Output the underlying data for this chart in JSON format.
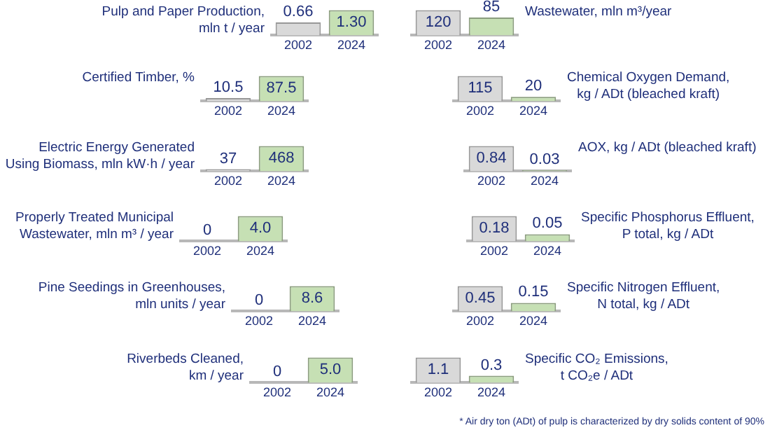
{
  "chart_data": [
    {
      "type": "bar",
      "title": "Pulp and Paper Production,\nmln t / year",
      "categories": [
        "2002",
        "2024"
      ],
      "values": [
        0.66,
        1.3
      ],
      "colors": [
        "#d9d9d9",
        "#c6e0b4"
      ],
      "value_labels": [
        "0.66",
        "1.30"
      ],
      "tick_labels": "x",
      "grid": false,
      "legend": false
    },
    {
      "type": "bar",
      "title": "Wastewater, mln m³/year",
      "categories": [
        "2002",
        "2024"
      ],
      "values": [
        120,
        85
      ],
      "colors": [
        "#d9d9d9",
        "#c6e0b4"
      ],
      "data_labels": true,
      "tick_labels": "x",
      "grid": false,
      "legend": false
    },
    {
      "type": "bar",
      "title": "Certified Timber, %",
      "categories": [
        "2002",
        "2024"
      ],
      "values": [
        10.5,
        87.5
      ],
      "colors": [
        "#d9d9d9",
        "#c6e0b4"
      ],
      "data_labels": true,
      "tick_labels": "x",
      "grid": false,
      "legend": false
    },
    {
      "type": "bar",
      "title": "Chemical Oxygen Demand,\nkg / ADt (bleached kraft)",
      "categories": [
        "2002",
        "2024"
      ],
      "values": [
        115,
        20
      ],
      "colors": [
        "#d9d9d9",
        "#c6e0b4"
      ],
      "data_labels": true,
      "tick_labels": "x",
      "grid": false,
      "legend": false
    },
    {
      "type": "bar",
      "title": "Electric Energy Generated\nUsing Biomass, mln kW·h / year",
      "categories": [
        "2002",
        "2024"
      ],
      "values": [
        37,
        468
      ],
      "colors": [
        "#d9d9d9",
        "#c6e0b4"
      ],
      "data_labels": true,
      "tick_labels": "x",
      "grid": false,
      "legend": false
    },
    {
      "type": "bar",
      "title": "AOX, kg / ADt (bleached kraft)",
      "categories": [
        "2002",
        "2024"
      ],
      "values": [
        0.84,
        0.03
      ],
      "colors": [
        "#d9d9d9",
        "#c6e0b4"
      ],
      "data_labels": true,
      "tick_labels": "x",
      "grid": false,
      "legend": false
    },
    {
      "type": "bar",
      "title": "Properly Treated Municipal\nWastewater, mln m³ / year",
      "categories": [
        "2002",
        "2024"
      ],
      "values": [
        0,
        4.0
      ],
      "colors": [
        "#d9d9d9",
        "#c6e0b4"
      ],
      "value_labels": [
        "0",
        "4.0"
      ],
      "tick_labels": "x",
      "grid": false,
      "legend": false
    },
    {
      "type": "bar",
      "title": "Specific Phosphorus Effluent,\nP total, kg / ADt",
      "categories": [
        "2002",
        "2024"
      ],
      "values": [
        0.18,
        0.05
      ],
      "colors": [
        "#d9d9d9",
        "#c6e0b4"
      ],
      "data_labels": true,
      "tick_labels": "x",
      "grid": false,
      "legend": false
    },
    {
      "type": "bar",
      "title": "Pine Seedings in Greenhouses,\nmln units / year",
      "categories": [
        "2002",
        "2024"
      ],
      "values": [
        0,
        8.6
      ],
      "colors": [
        "#d9d9d9",
        "#c6e0b4"
      ],
      "data_labels": true,
      "tick_labels": "x",
      "grid": false,
      "legend": false
    },
    {
      "type": "bar",
      "title": "Specific Nitrogen Effluent,\nN total, kg / ADt",
      "categories": [
        "2002",
        "2024"
      ],
      "values": [
        0.45,
        0.15
      ],
      "colors": [
        "#d9d9d9",
        "#c6e0b4"
      ],
      "data_labels": true,
      "tick_labels": "x",
      "grid": false,
      "legend": false
    },
    {
      "type": "bar",
      "title": "Riverbeds Cleaned,\nkm / year",
      "categories": [
        "2002",
        "2024"
      ],
      "values": [
        0,
        5.0
      ],
      "colors": [
        "#d9d9d9",
        "#c6e0b4"
      ],
      "value_labels": [
        "0",
        "5.0"
      ],
      "tick_labels": "x",
      "grid": false,
      "legend": false
    },
    {
      "type": "bar",
      "title": "Specific CO₂ Emissions,\nt CO₂e / ADt",
      "categories": [
        "2002",
        "2024"
      ],
      "values": [
        1.1,
        0.3
      ],
      "colors": [
        "#d9d9d9",
        "#c6e0b4"
      ],
      "data_labels": true,
      "tick_labels": "x",
      "grid": false,
      "legend": false,
      "annotations": [
        "* Air dry ton (ADt) of pulp is characterized by dry solids content of 90%"
      ]
    }
  ]
}
